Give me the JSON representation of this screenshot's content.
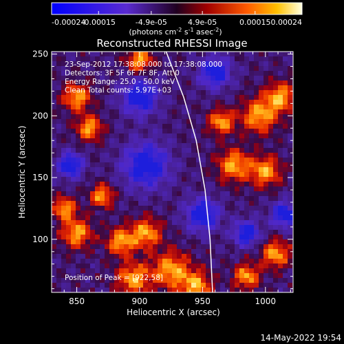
{
  "chart_data": {
    "type": "heatmap",
    "title": "Reconstructed RHESSI Image",
    "xlabel": "Heliocentric X (arcsec)",
    "ylabel": "Heliocentric Y (arcsec)",
    "xlim": [
      830,
      1022
    ],
    "ylim": [
      57,
      252
    ],
    "x_ticks": [
      850,
      900,
      950,
      1000
    ],
    "y_ticks": [
      100,
      150,
      200,
      250
    ],
    "x_tick_labels": [
      "850",
      "900",
      "950",
      "1000"
    ],
    "y_tick_labels": [
      "100",
      "150",
      "200",
      "250"
    ],
    "colorbar": {
      "range": [
        -0.00024,
        0.00024
      ],
      "tick_values": [
        -0.00024,
        -0.00015,
        -4.9e-05,
        4.9e-05,
        0.00015,
        0.00024
      ],
      "tick_labels": [
        "-0.00024",
        "-0.00015",
        "-4.9e-05",
        "4.9e-05",
        "0.00015",
        "0.00024"
      ],
      "label_main": "(photons cm",
      "label_sup1": "-2",
      "label_mid1": " s",
      "label_sup2": "-1",
      "label_mid2": " asec",
      "label_sup3": "-2",
      "label_end": ")"
    },
    "annotations": [
      "23-Sep-2012 17:38:08.000 to 17:38:08.000",
      "Detectors: 3F 5F 6F 7F 8F, Att 0",
      "Energy Range: 25.0 - 50.0 keV",
      "Clean     Total counts: 5.97E+03"
    ],
    "peak_text": "Position of Peak = [922,58]",
    "limb": [
      [
        921,
        252
      ],
      [
        935,
        215
      ],
      [
        945,
        180
      ],
      [
        952,
        140
      ],
      [
        956,
        100
      ],
      [
        958,
        57
      ]
    ],
    "regions": [
      {
        "x": 895,
        "y": 68,
        "w": 13
      },
      {
        "x": 925,
        "y": 75,
        "w": 15
      },
      {
        "x": 945,
        "y": 62,
        "w": 12
      },
      {
        "x": 985,
        "y": 70,
        "w": 10
      },
      {
        "x": 1008,
        "y": 88,
        "w": 11
      },
      {
        "x": 850,
        "y": 105,
        "w": 12
      },
      {
        "x": 885,
        "y": 98,
        "w": 11
      },
      {
        "x": 905,
        "y": 105,
        "w": 12
      },
      {
        "x": 975,
        "y": 160,
        "w": 13
      },
      {
        "x": 1000,
        "y": 155,
        "w": 12
      },
      {
        "x": 995,
        "y": 200,
        "w": 14
      },
      {
        "x": 1012,
        "y": 215,
        "w": 12
      },
      {
        "x": 965,
        "y": 195,
        "w": 10
      },
      {
        "x": 850,
        "y": 215,
        "w": 11
      },
      {
        "x": 860,
        "y": 190,
        "w": 10
      },
      {
        "x": 900,
        "y": 245,
        "w": 10
      },
      {
        "x": 840,
        "y": 125,
        "w": 9
      },
      {
        "x": 870,
        "y": 135,
        "w": 9
      }
    ],
    "cold_regions": [
      {
        "x": 905,
        "y": 160,
        "w": 18
      },
      {
        "x": 900,
        "y": 215,
        "w": 14
      },
      {
        "x": 950,
        "y": 120,
        "w": 13
      },
      {
        "x": 960,
        "y": 235,
        "w": 12
      },
      {
        "x": 1015,
        "y": 120,
        "w": 10
      },
      {
        "x": 985,
        "y": 105,
        "w": 10
      },
      {
        "x": 845,
        "y": 160,
        "w": 10
      }
    ]
  },
  "footer": {
    "timestamp": "14-May-2022 19:54"
  },
  "colors": {
    "background": "#000000",
    "text": "#ffffff",
    "limb": "#ffffff"
  }
}
